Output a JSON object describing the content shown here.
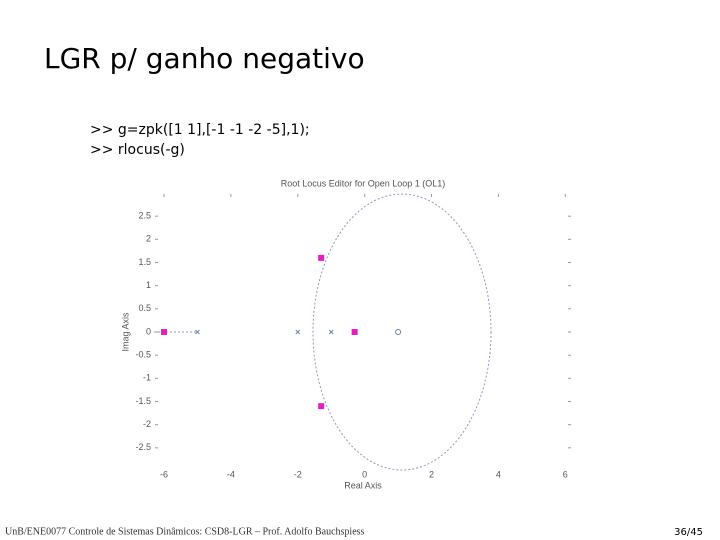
{
  "title": "LGR p/ ganho negativo",
  "code": [
    ">> g=zpk([1 1],[-1 -1 -2 -5],1);",
    ">> rlocus(-g)"
  ],
  "footer": "UnB/ENE0077 Controle de Sistemas Dinâmicos: CSD8-LGR – Prof. Adolfo Bauchspiess",
  "page_number": "36/45",
  "chart_data": {
    "type": "scatter",
    "title": "Root Locus Editor for Open Loop 1 (OL1)",
    "xlabel": "Real Axis",
    "ylabel": "Imag Axis",
    "xlim": [
      -6.3,
      6.2
    ],
    "ylim": [
      -3,
      3
    ],
    "xticks": [
      -6,
      -4,
      -2,
      0,
      2,
      4,
      6
    ],
    "yticks": [
      2.5,
      2,
      1.5,
      1,
      0.5,
      0,
      -0.5,
      -1,
      -1.5,
      -2,
      -2.5
    ],
    "series": [
      {
        "marker": "cross",
        "color": "#6a7fb5",
        "x": [
          -5,
          -2,
          -1
        ],
        "values": [
          0,
          0,
          0
        ]
      },
      {
        "marker": "circle",
        "color": "#6a7fb5",
        "x": [
          1
        ],
        "values": [
          0
        ]
      },
      {
        "marker": "square",
        "color": "#e020c0",
        "x": [
          -6,
          -1.3,
          -1.3,
          -0.3
        ],
        "values": [
          0,
          1.6,
          -1.6,
          0
        ]
      }
    ]
  }
}
